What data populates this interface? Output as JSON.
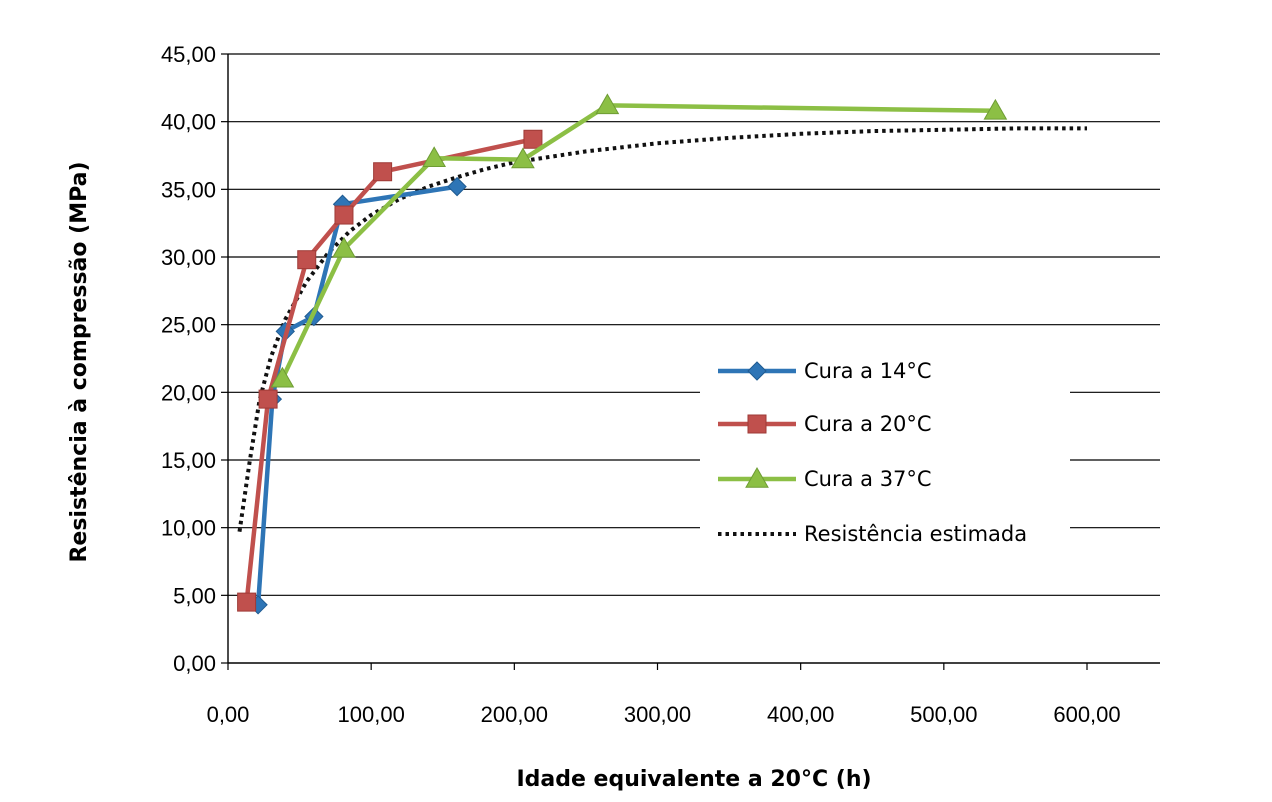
{
  "chart_data": {
    "type": "line",
    "title": "",
    "xlabel": "Idade equivalente a 20°C (h)",
    "ylabel": "Resistência à compressão (MPa)",
    "xlim": [
      0,
      600
    ],
    "ylim": [
      0,
      45
    ],
    "x_ticks": [
      0,
      100,
      200,
      300,
      400,
      500,
      600
    ],
    "y_ticks": [
      0,
      5,
      10,
      15,
      20,
      25,
      30,
      35,
      40,
      45
    ],
    "x_tick_labels": [
      "0,00",
      "100,00",
      "200,00",
      "300,00",
      "400,00",
      "500,00",
      "600,00"
    ],
    "y_tick_labels": [
      "0,00",
      "5,00",
      "10,00",
      "15,00",
      "20,00",
      "25,00",
      "30,00",
      "35,00",
      "40,00",
      "45,00"
    ],
    "grid": "horizontal",
    "legend_position": "right",
    "series": [
      {
        "name": "Cura a 14°C",
        "color": "#2e75b6",
        "marker": "diamond",
        "points": [
          [
            21,
            4.3
          ],
          [
            31,
            19.5
          ],
          [
            40,
            24.5
          ],
          [
            60,
            25.6
          ],
          [
            80,
            33.9
          ],
          [
            160,
            35.2
          ]
        ]
      },
      {
        "name": "Cura a 20°C",
        "color": "#c0504d",
        "marker": "square",
        "points": [
          [
            13,
            4.5
          ],
          [
            28,
            19.5
          ],
          [
            55,
            29.8
          ],
          [
            81,
            33.1
          ],
          [
            108,
            36.3
          ],
          [
            213,
            38.7
          ]
        ]
      },
      {
        "name": "Cura a 37°C",
        "color": "#8cbf45",
        "marker": "triangle",
        "points": [
          [
            38,
            21.0
          ],
          [
            81,
            30.6
          ],
          [
            144,
            37.3
          ],
          [
            206,
            37.2
          ],
          [
            265,
            41.2
          ],
          [
            536,
            40.8
          ]
        ]
      },
      {
        "name": "Resistência estimada",
        "color": "#111111",
        "marker": "none",
        "dashed": true,
        "points": [
          [
            8,
            9.7
          ],
          [
            15,
            14.8
          ],
          [
            22,
            19.4
          ],
          [
            30,
            22.6
          ],
          [
            40,
            25.4
          ],
          [
            55,
            28.2
          ],
          [
            70,
            30.3
          ],
          [
            85,
            31.9
          ],
          [
            100,
            33.1
          ],
          [
            120,
            34.3
          ],
          [
            140,
            35.2
          ],
          [
            160,
            35.9
          ],
          [
            180,
            36.5
          ],
          [
            200,
            37.0
          ],
          [
            250,
            37.8
          ],
          [
            300,
            38.4
          ],
          [
            350,
            38.8
          ],
          [
            400,
            39.1
          ],
          [
            450,
            39.3
          ],
          [
            500,
            39.4
          ],
          [
            550,
            39.5
          ],
          [
            600,
            39.5
          ]
        ]
      }
    ]
  }
}
